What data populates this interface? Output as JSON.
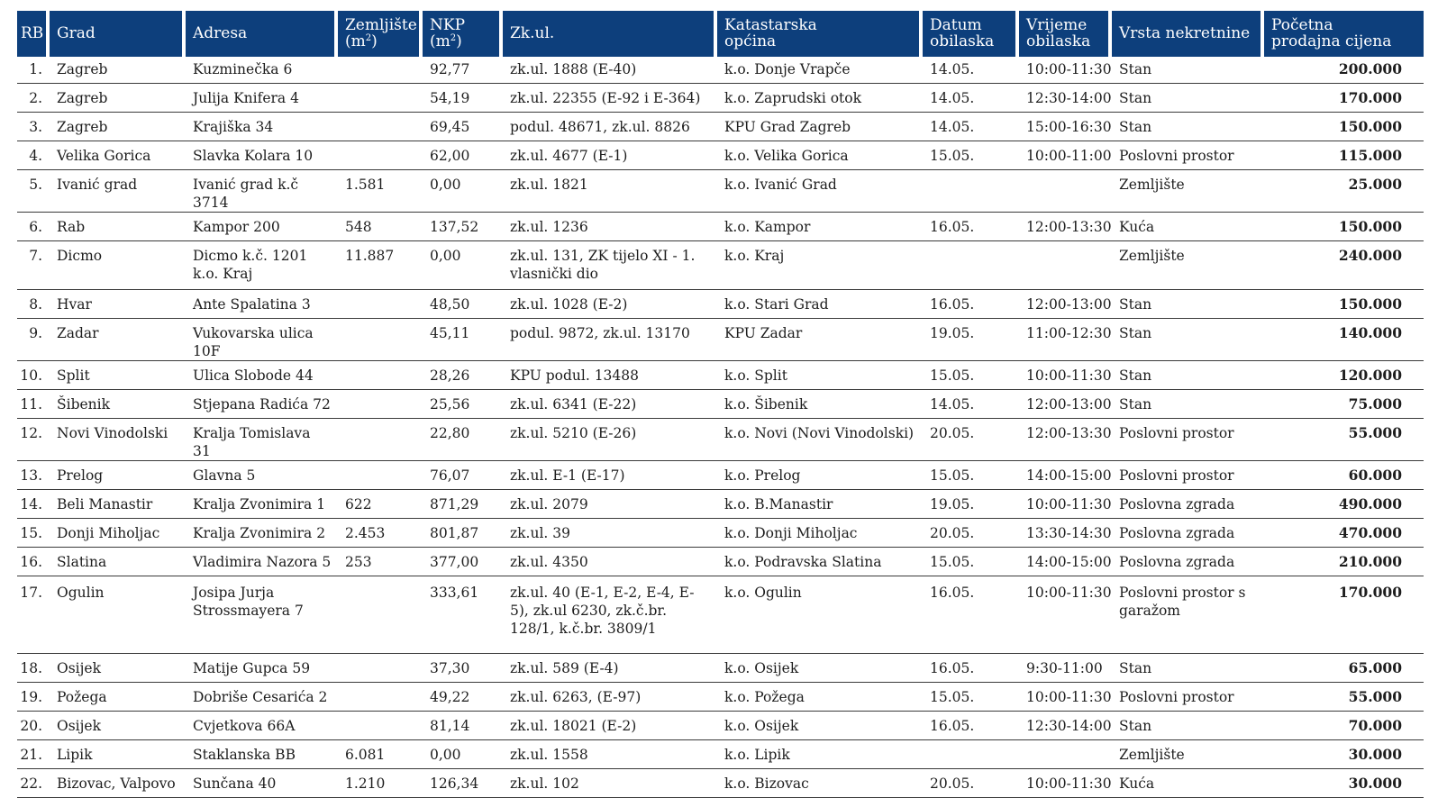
{
  "table": {
    "headers": {
      "rb": "RB",
      "grad": "Grad",
      "adresa": "Adresa",
      "zemljiste_l1": "Zemljište",
      "zemljiste_l2": "(m",
      "nkp_l1": "NKP",
      "nkp_l2": "(m",
      "sup2": "2",
      "close": ")",
      "zkul": "Zk.ul.",
      "katastarska_l1": "Katastarska",
      "katastarska_l2": "općina",
      "datum_l1": "Datum",
      "datum_l2": "obilaska",
      "vrijeme_l1": "Vrijeme",
      "vrijeme_l2": "obilaska",
      "vrsta": "Vrsta nekretnine",
      "cijena_l1": "Početna",
      "cijena_l2": "prodajna cijena"
    },
    "rows": [
      {
        "rb": "1.",
        "grad": "Zagreb",
        "adresa": "Kuzminečka 6",
        "zemljiste": "",
        "nkp": "92,77",
        "zkul": "zk.ul. 1888 (E-40)",
        "ko": "k.o. Donje Vrapče",
        "datum": "14.05.",
        "vrijeme": "10:00-11:30",
        "vrsta": "Stan",
        "cijena": "200.000"
      },
      {
        "rb": "2.",
        "grad": "Zagreb",
        "adresa": "Julija Knifera 4",
        "zemljiste": "",
        "nkp": "54,19",
        "zkul": "zk.ul. 22355 (E-92 i E-364)",
        "ko": "k.o. Zaprudski otok",
        "datum": "14.05.",
        "vrijeme": "12:30-14:00",
        "vrsta": "Stan",
        "cijena": "170.000"
      },
      {
        "rb": "3.",
        "grad": "Zagreb",
        "adresa": "Krajiška 34",
        "zemljiste": "",
        "nkp": "69,45",
        "zkul": "podul. 48671, zk.ul. 8826",
        "ko": "KPU Grad Zagreb",
        "datum": "14.05.",
        "vrijeme": "15:00-16:30",
        "vrsta": "Stan",
        "cijena": "150.000"
      },
      {
        "rb": "4.",
        "grad": "Velika Gorica",
        "adresa": "Slavka Kolara 10",
        "zemljiste": "",
        "nkp": "62,00",
        "zkul": "zk.ul. 4677 (E-1)",
        "ko": "k.o. Velika Gorica",
        "datum": "15.05.",
        "vrijeme": "10:00-11:00",
        "vrsta": "Poslovni prostor",
        "cijena": "115.000"
      },
      {
        "rb": "5.",
        "grad": "Ivanić grad",
        "adresa": "Ivanić grad k.č 3714",
        "zemljiste": "1.581",
        "nkp": "0,00",
        "zkul": "zk.ul. 1821",
        "ko": "k.o. Ivanić Grad",
        "datum": "",
        "vrijeme": "",
        "vrsta": "Zemljište",
        "cijena": "25.000"
      },
      {
        "rb": "6.",
        "grad": "Rab",
        "adresa": "Kampor 200",
        "zemljiste": "548",
        "nkp": "137,52",
        "zkul": "zk.ul. 1236",
        "ko": "k.o. Kampor",
        "datum": "16.05.",
        "vrijeme": "12:00-13:30",
        "vrsta": "Kuća",
        "cijena": "150.000"
      },
      {
        "rb": "7.",
        "grad": "Dicmo",
        "adresa": "Dicmo k.č. 1201 k.o. Kraj",
        "zemljiste": "11.887",
        "nkp": "0,00",
        "zkul": "zk.ul. 131, ZK tijelo XI - 1. vlasnički dio",
        "ko": "k.o. Kraj",
        "datum": "",
        "vrijeme": "",
        "vrsta": "Zemljište",
        "cijena": "240.000"
      },
      {
        "rb": "8.",
        "grad": "Hvar",
        "adresa": "Ante Spalatina 3",
        "zemljiste": "",
        "nkp": "48,50",
        "zkul": "zk.ul. 1028 (E-2)",
        "ko": "k.o. Stari Grad",
        "datum": "16.05.",
        "vrijeme": "12:00-13:00",
        "vrsta": "Stan",
        "cijena": "150.000"
      },
      {
        "rb": "9.",
        "grad": "Zadar",
        "adresa": "Vukovarska ulica 10F",
        "zemljiste": "",
        "nkp": "45,11",
        "zkul": "podul. 9872, zk.ul. 13170",
        "ko": "KPU Zadar",
        "datum": "19.05.",
        "vrijeme": "11:00-12:30",
        "vrsta": "Stan",
        "cijena": "140.000"
      },
      {
        "rb": "10.",
        "grad": "Split",
        "adresa": "Ulica Slobode 44",
        "zemljiste": "",
        "nkp": "28,26",
        "zkul": "KPU podul. 13488",
        "ko": "k.o. Split",
        "datum": "15.05.",
        "vrijeme": "10:00-11:30",
        "vrsta": "Stan",
        "cijena": "120.000"
      },
      {
        "rb": "11.",
        "grad": "Šibenik",
        "adresa": "Stjepana Radića 72",
        "zemljiste": "",
        "nkp": "25,56",
        "zkul": "zk.ul. 6341 (E-22)",
        "ko": "k.o. Šibenik",
        "datum": "14.05.",
        "vrijeme": "12:00-13:00",
        "vrsta": "Stan",
        "cijena": "75.000"
      },
      {
        "rb": "12.",
        "grad": "Novi Vinodolski",
        "adresa": "Kralja Tomislava 31",
        "zemljiste": "",
        "nkp": "22,80",
        "zkul": "zk.ul. 5210 (E-26)",
        "ko": "k.o. Novi (Novi Vinodolski)",
        "datum": "20.05.",
        "vrijeme": "12:00-13:30",
        "vrsta": "Poslovni prostor",
        "cijena": "55.000"
      },
      {
        "rb": "13.",
        "grad": "Prelog",
        "adresa": "Glavna 5",
        "zemljiste": "",
        "nkp": "76,07",
        "zkul": "zk.ul. E-1 (E-17)",
        "ko": "k.o. Prelog",
        "datum": "15.05.",
        "vrijeme": "14:00-15:00",
        "vrsta": "Poslovni prostor",
        "cijena": "60.000"
      },
      {
        "rb": "14.",
        "grad": "Beli Manastir",
        "adresa": "Kralja Zvonimira 1",
        "zemljiste": "622",
        "nkp": "871,29",
        "zkul": "zk.ul. 2079",
        "ko": "k.o. B.Manastir",
        "datum": "19.05.",
        "vrijeme": "10:00-11:30",
        "vrsta": "Poslovna zgrada",
        "cijena": "490.000"
      },
      {
        "rb": "15.",
        "grad": "Donji Miholjac",
        "adresa": "Kralja Zvonimira 2",
        "zemljiste": "2.453",
        "nkp": "801,87",
        "zkul": "zk.ul. 39",
        "ko": "k.o. Donji Miholjac",
        "datum": "20.05.",
        "vrijeme": "13:30-14:30",
        "vrsta": "Poslovna zgrada",
        "cijena": "470.000"
      },
      {
        "rb": "16.",
        "grad": "Slatina",
        "adresa": "Vladimira Nazora 5",
        "zemljiste": "253",
        "nkp": "377,00",
        "zkul": "zk.ul. 4350",
        "ko": "k.o. Podravska Slatina",
        "datum": "15.05.",
        "vrijeme": "14:00-15:00",
        "vrsta": "Poslovna zgrada",
        "cijena": "210.000"
      },
      {
        "rb": "17.",
        "grad": "Ogulin",
        "adresa": "Josipa Jurja Strossmayera 7",
        "zemljiste": "",
        "nkp": "333,61",
        "zkul": "zk.ul. 40 (E-1, E-2, E-4, E-5), zk.ul 6230, zk.č.br. 128/1, k.č.br. 3809/1",
        "ko": "k.o. Ogulin",
        "datum": "16.05.",
        "vrijeme": "10:00-11:30",
        "vrsta": "Poslovni prostor s garažom",
        "cijena": "170.000"
      },
      {
        "rb": "18.",
        "grad": "Osijek",
        "adresa": "Matije Gupca 59",
        "zemljiste": "",
        "nkp": "37,30",
        "zkul": "zk.ul. 589 (E-4)",
        "ko": "k.o. Osijek",
        "datum": "16.05.",
        "vrijeme": "9:30-11:00",
        "vrsta": "Stan",
        "cijena": "65.000"
      },
      {
        "rb": "19.",
        "grad": "Požega",
        "adresa": "Dobriše Cesarića 2",
        "zemljiste": "",
        "nkp": "49,22",
        "zkul": "zk.ul. 6263, (E-97)",
        "ko": "k.o. Požega",
        "datum": "15.05.",
        "vrijeme": "10:00-11:30",
        "vrsta": "Poslovni prostor",
        "cijena": "55.000"
      },
      {
        "rb": "20.",
        "grad": "Osijek",
        "adresa": "Cvjetkova 66A",
        "zemljiste": "",
        "nkp": "81,14",
        "zkul": "zk.ul. 18021 (E-2)",
        "ko": "k.o. Osijek",
        "datum": "16.05.",
        "vrijeme": "12:30-14:00",
        "vrsta": "Stan",
        "cijena": "70.000"
      },
      {
        "rb": "21.",
        "grad": "Lipik",
        "adresa": "Staklanska BB",
        "zemljiste": "6.081",
        "nkp": "0,00",
        "zkul": "zk.ul. 1558",
        "ko": "k.o. Lipik",
        "datum": "",
        "vrijeme": "",
        "vrsta": "Zemljište",
        "cijena": "30.000"
      },
      {
        "rb": "22.",
        "grad": "Bizovac, Valpovo",
        "adresa": "Sunčana 40",
        "zemljiste": "1.210",
        "nkp": "126,34",
        "zkul": "zk.ul. 102",
        "ko": "k.o. Bizovac",
        "datum": "20.05.",
        "vrijeme": "10:00-11:30",
        "vrsta": "Kuća",
        "cijena": "30.000"
      }
    ]
  }
}
